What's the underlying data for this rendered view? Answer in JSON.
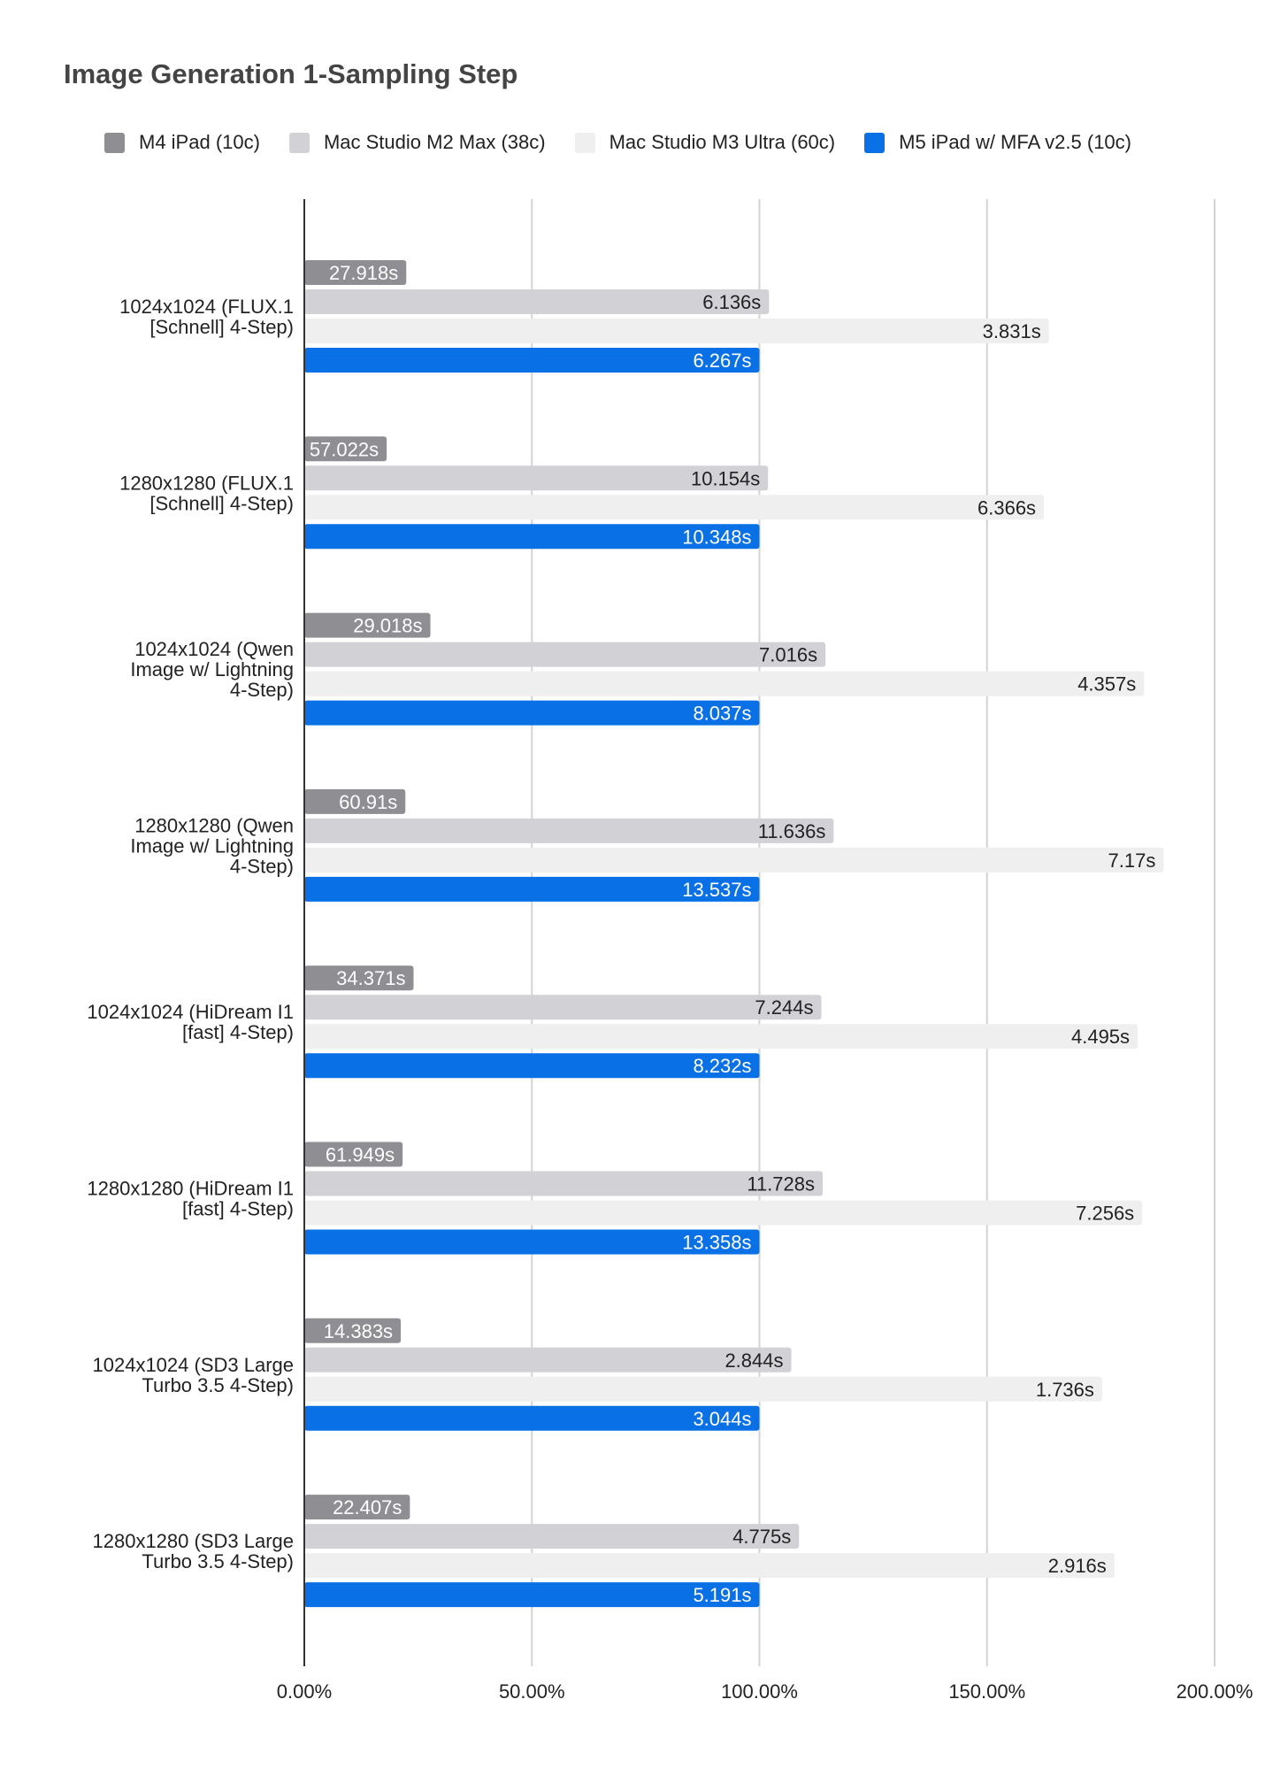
{
  "chart_data": {
    "type": "bar",
    "orientation": "horizontal",
    "title": "Image Generation 1-Sampling Step",
    "xlabel": "",
    "ylabel": "",
    "xlim": [
      0,
      200
    ],
    "x_ticks": [
      0,
      50,
      100,
      150,
      200
    ],
    "x_tick_labels": [
      "0.00%",
      "50.00%",
      "100.00%",
      "150.00%",
      "200.00%"
    ],
    "grid": "vertical",
    "legend_position": "top",
    "categories": [
      [
        "1024x1024 (FLUX.1",
        "[Schnell] 4-Step)"
      ],
      [
        "1280x1280 (FLUX.1",
        "[Schnell] 4-Step)"
      ],
      [
        "1024x1024 (Qwen",
        "Image w/ Lightning",
        "4-Step)"
      ],
      [
        "1280x1280 (Qwen",
        "Image w/ Lightning",
        "4-Step)"
      ],
      [
        "1024x1024 (HiDream I1",
        "[fast] 4-Step)"
      ],
      [
        "1280x1280 (HiDream I1",
        "[fast] 4-Step)"
      ],
      [
        "1024x1024 (SD3 Large",
        "Turbo 3.5 4-Step)"
      ],
      [
        "1280x1280 (SD3 Large",
        "Turbo 3.5 4-Step)"
      ]
    ],
    "series": [
      {
        "name": "M4 iPad (10c)",
        "color": "#8e8e93",
        "label_color": "#ffffff",
        "values": [
          22.4,
          18.1,
          27.7,
          22.2,
          24.0,
          21.6,
          21.2,
          23.2
        ],
        "labels": [
          "27.918s",
          "57.022s",
          "29.018s",
          "60.91s",
          "34.371s",
          "61.949s",
          "14.383s",
          "22.407s"
        ]
      },
      {
        "name": "Mac Studio M2 Max (38c)",
        "color": "#d1d1d6",
        "label_color": "#222222",
        "values": [
          102.1,
          101.9,
          114.5,
          116.3,
          113.6,
          113.9,
          107.0,
          108.7
        ],
        "labels": [
          "6.136s",
          "10.154s",
          "7.016s",
          "11.636s",
          "7.244s",
          "11.728s",
          "2.844s",
          "4.775s"
        ]
      },
      {
        "name": "Mac Studio M3 Ultra (60c)",
        "color": "#efefef",
        "label_color": "#222222",
        "values": [
          163.6,
          162.5,
          184.5,
          188.8,
          183.1,
          184.1,
          175.3,
          178.0
        ],
        "labels": [
          "3.831s",
          "6.366s",
          "4.357s",
          "7.17s",
          "4.495s",
          "7.256s",
          "1.736s",
          "2.916s"
        ]
      },
      {
        "name": "M5 iPad w/ MFA v2.5 (10c)",
        "color": "#0a70e6",
        "label_color": "#ffffff",
        "values": [
          100,
          100,
          100,
          100,
          100,
          100,
          100,
          100
        ],
        "labels": [
          "6.267s",
          "10.348s",
          "8.037s",
          "13.537s",
          "8.232s",
          "13.358s",
          "3.044s",
          "5.191s"
        ]
      }
    ]
  }
}
